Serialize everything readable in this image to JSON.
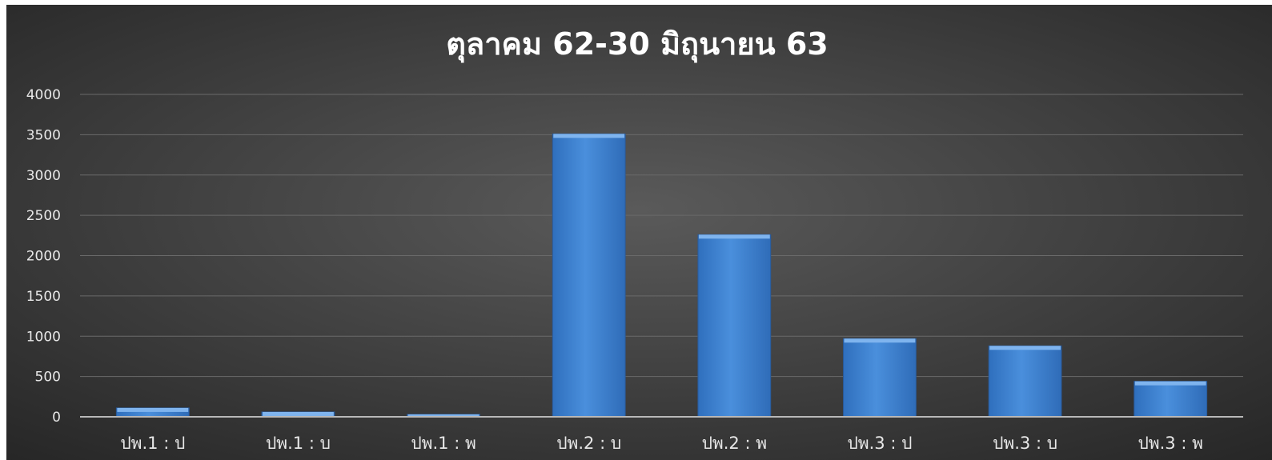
{
  "chart_data": {
    "type": "bar",
    "title": "ตุลาคม 62-30 มิถุนายน 63",
    "categories": [
      "ปพ.1 : ป",
      "ปพ.1 : บ",
      "ปพ.1 : พ",
      "ปพ.2 : บ",
      "ปพ.2 : พ",
      "ปพ.3 : ป",
      "ปพ.3 : บ",
      "ปพ.3 : พ"
    ],
    "values": [
      110,
      60,
      30,
      3510,
      2260,
      970,
      880,
      440
    ],
    "ylim": [
      0,
      4000
    ],
    "yticks": [
      "0",
      "500",
      "1000",
      "1500",
      "2000",
      "2500",
      "3000",
      "3500",
      "4000"
    ],
    "grid": true,
    "legend": "none",
    "colors": {
      "background_center": "#5a5a5a",
      "background_edge": "#262626",
      "bar": "#3f84d4",
      "bar_top": "#7fb4ee",
      "bar_edge": "#2a5a99",
      "grid": "#6a6a6a",
      "text": "#e8e8e8",
      "title": "#ffffff"
    }
  }
}
